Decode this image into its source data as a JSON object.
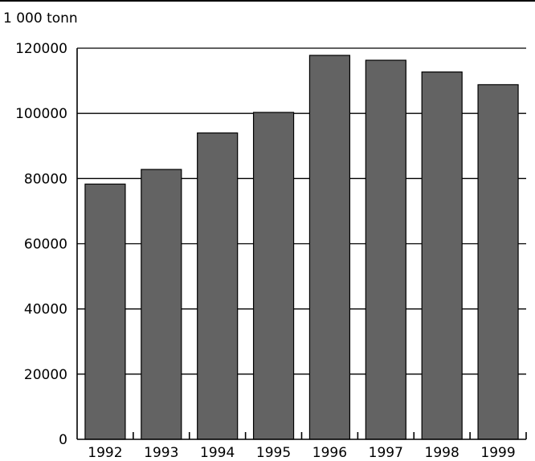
{
  "chart_data": {
    "type": "bar",
    "title": "",
    "ylabel": "1 000 tonn",
    "xlabel": "",
    "categories": [
      "1992",
      "1993",
      "1994",
      "1995",
      "1996",
      "1997",
      "1998",
      "1999"
    ],
    "values": [
      78300,
      82800,
      94000,
      100300,
      117800,
      116300,
      112700,
      108800
    ],
    "ylim": [
      0,
      120000
    ],
    "yticks": [
      "0",
      "20000",
      "40000",
      "60000",
      "80000",
      "100000",
      "120000"
    ],
    "grid": true,
    "legend": "none",
    "colors": {
      "bar": "#636363",
      "bar_stroke": "#000000",
      "grid": "#000000"
    }
  }
}
